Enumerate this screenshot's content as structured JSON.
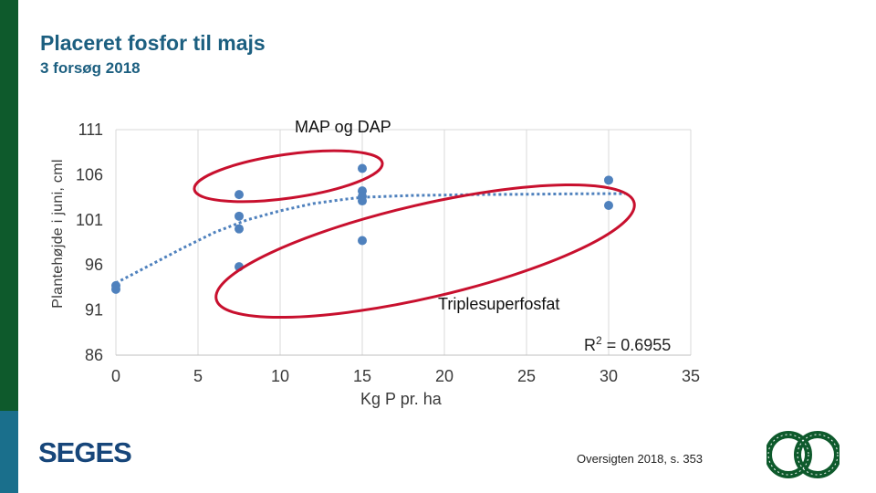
{
  "slide": {
    "title": "Placeret fosfor til majs",
    "subtitle": "3 forsøg 2018",
    "brand": "SEGES",
    "source": "Oversigten 2018, s. 353",
    "logo_icon": "landbrug-fodevarer-logo"
  },
  "chart_data": {
    "type": "scatter",
    "xlabel": "Kg P pr. ha",
    "ylabel": "Plantehøjde i juni, cml",
    "xlim": [
      0,
      35
    ],
    "ylim": [
      86,
      111
    ],
    "xticks": [
      "0",
      "5",
      "10",
      "15",
      "20",
      "25",
      "30",
      "35"
    ],
    "yticks": [
      "86",
      "91",
      "96",
      "101",
      "106",
      "111"
    ],
    "grid": "vertical",
    "series": [
      {
        "values": [
          {
            "x": 0,
            "y": 93.7
          },
          {
            "x": 0,
            "y": 93.3
          },
          {
            "x": 7.5,
            "y": 103.8
          },
          {
            "x": 7.5,
            "y": 101.4
          },
          {
            "x": 7.5,
            "y": 100.0
          },
          {
            "x": 7.5,
            "y": 95.8
          },
          {
            "x": 15,
            "y": 106.7
          },
          {
            "x": 15,
            "y": 104.2
          },
          {
            "x": 15,
            "y": 103.6
          },
          {
            "x": 15,
            "y": 103.1
          },
          {
            "x": 15,
            "y": 98.7
          },
          {
            "x": 30,
            "y": 105.4
          },
          {
            "x": 30,
            "y": 102.6
          }
        ]
      }
    ],
    "trendline": {
      "x": [
        0,
        2,
        4,
        6,
        8,
        10,
        12,
        14,
        15,
        18,
        20,
        22,
        24,
        26,
        28,
        30,
        31
      ],
      "y": [
        94.0,
        95.9,
        97.8,
        99.6,
        101.0,
        102.0,
        102.8,
        103.3,
        103.5,
        103.7,
        103.75,
        103.8,
        103.82,
        103.85,
        103.88,
        103.9,
        103.9
      ],
      "r2_label": "R",
      "r2_exponent": "2",
      "r2_value": "= 0.6955"
    },
    "annotations": [
      {
        "text": "MAP og DAP"
      },
      {
        "text": "Triplesuperfosfat"
      }
    ],
    "colors": {
      "points": "#4f81bd",
      "trend": "#4f81bd",
      "ellipses": "#c8102e",
      "grid": "#d9d9d9"
    }
  }
}
